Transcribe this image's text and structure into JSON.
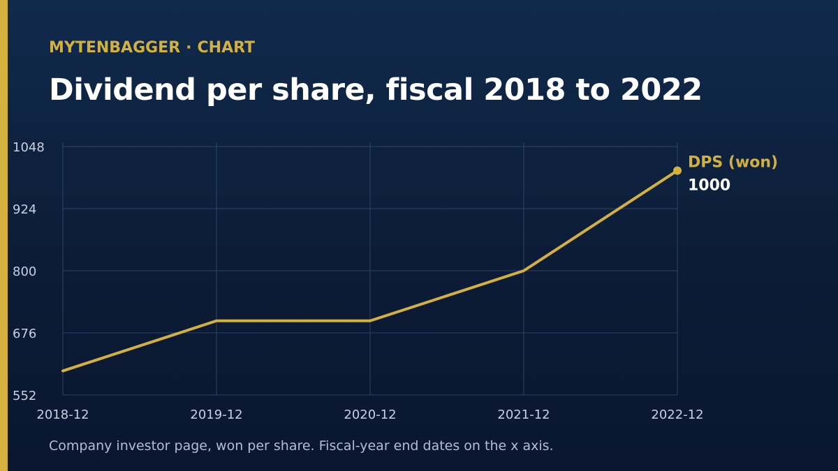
{
  "header": {
    "brand": "MYTENBAGGER",
    "separator": "·",
    "section": "CHART"
  },
  "footnote": "Company investor page, won per share. Fiscal-year end dates on the x axis.",
  "colors": {
    "accent": "#d4b13f",
    "background": "#0c1c36",
    "grid": "#2a4466",
    "text": "#ffffff"
  },
  "chart_data": {
    "type": "line",
    "title": "Dividend per share, fiscal 2018 to 2022",
    "xlabel": "",
    "ylabel": "",
    "categories": [
      "2018-12",
      "2019-12",
      "2020-12",
      "2021-12",
      "2022-12"
    ],
    "series": [
      {
        "name": "DPS (won)",
        "values": [
          600,
          700,
          700,
          800,
          1000
        ],
        "color": "#d4b13f"
      }
    ],
    "end_label": "1000",
    "ylim": [
      552,
      1048
    ],
    "yticks": [
      1048,
      924,
      800,
      676,
      552
    ],
    "grid": true,
    "legend": "direct label at line end (right)"
  }
}
